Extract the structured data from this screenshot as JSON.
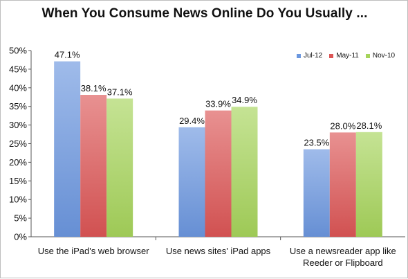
{
  "colors": {
    "Jul-12": "#6b97df",
    "May-11": "#dc5555",
    "Nov-10": "#a6d45b"
  },
  "chart_data": {
    "type": "bar",
    "title": "When You Consume News Online Do You Usually ...",
    "categories": [
      "Use the iPad's web browser",
      "Use news sites' iPad apps",
      "Use a newsreader app like Reeder or Flipboard"
    ],
    "series": [
      {
        "name": "Jul-12",
        "values": [
          47.1,
          29.4,
          23.5
        ],
        "labels": [
          "47.1%",
          "29.4%",
          "23.5%"
        ]
      },
      {
        "name": "May-11",
        "values": [
          38.1,
          33.9,
          28.0
        ],
        "labels": [
          "38.1%",
          "33.9%",
          "28.0%"
        ]
      },
      {
        "name": "Nov-10",
        "values": [
          37.1,
          34.9,
          28.1
        ],
        "labels": [
          "37.1%",
          "34.9%",
          "28.1%"
        ]
      }
    ],
    "y_ticks": [
      "0%",
      "5%",
      "10%",
      "15%",
      "20%",
      "25%",
      "30%",
      "35%",
      "40%",
      "45%",
      "50%"
    ],
    "ylim": [
      0,
      50
    ],
    "grid": false,
    "legend_position": "top-right"
  }
}
